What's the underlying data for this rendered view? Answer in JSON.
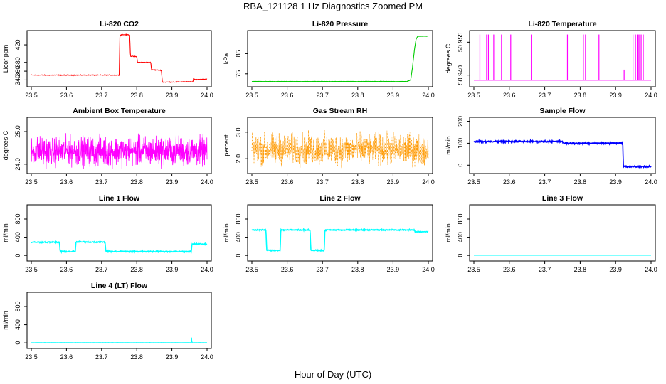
{
  "title": "RBA_121128  1 Hz Diagnostics Zoomed PM",
  "xlabel": "Hour of Day (UTC)",
  "chart_data": [
    {
      "type": "line",
      "title": "Li-820 CO2",
      "ylabel": "Licor ppm",
      "color": "#ff0000",
      "xlim": [
        23.5,
        24.0
      ],
      "ylim": [
        331,
        446
      ],
      "yticks": [
        340,
        360,
        380,
        420
      ],
      "xticks": [
        23.5,
        23.6,
        23.7,
        23.8,
        23.9,
        24.0
      ],
      "noise": 1.2,
      "points": [
        [
          23.5,
          351
        ],
        [
          23.75,
          351
        ],
        [
          23.752,
          441
        ],
        [
          23.755,
          443
        ],
        [
          23.78,
          443
        ],
        [
          23.782,
          394
        ],
        [
          23.8,
          393
        ],
        [
          23.802,
          380
        ],
        [
          23.84,
          380
        ],
        [
          23.842,
          363
        ],
        [
          23.87,
          362
        ],
        [
          23.873,
          335
        ],
        [
          23.96,
          336
        ],
        [
          23.962,
          346
        ],
        [
          23.963,
          341
        ],
        [
          24.0,
          342
        ]
      ]
    },
    {
      "type": "line",
      "title": "Li-820 Pressure",
      "ylabel": "kPa",
      "color": "#00cc00",
      "xlim": [
        23.5,
        24.0
      ],
      "ylim": [
        70,
        95
      ],
      "yticks": [
        75,
        85
      ],
      "xticks": [
        23.5,
        23.6,
        23.7,
        23.8,
        23.9,
        24.0
      ],
      "noise": 0.15,
      "points": [
        [
          23.5,
          71.2
        ],
        [
          23.94,
          71.2
        ],
        [
          23.95,
          72
        ],
        [
          23.955,
          78
        ],
        [
          23.96,
          86
        ],
        [
          23.965,
          92
        ],
        [
          23.97,
          93.6
        ],
        [
          24.0,
          93.6
        ]
      ]
    },
    {
      "type": "spikes",
      "title": "Li-820 Temperature",
      "ylabel": "degrees C",
      "color": "#ff00ff",
      "xlim": [
        23.5,
        24.0
      ],
      "ylim": [
        50.936,
        50.959
      ],
      "yticks": [
        50.94,
        50.955
      ],
      "ytickLabels": [
        "50.940",
        "50.955"
      ],
      "xticks": [
        23.5,
        23.6,
        23.7,
        23.8,
        23.9,
        24.0
      ],
      "baseline": 50.9377,
      "top": 50.9585,
      "spikes": [
        23.517,
        23.536,
        23.541,
        23.556,
        23.578,
        23.604,
        23.662,
        23.764,
        23.809,
        23.815,
        23.853,
        23.949,
        23.956,
        23.961,
        23.963,
        23.966,
        23.972,
        23.978
      ],
      "midSpikes": [
        [
          23.924,
          50.9425
        ]
      ]
    },
    {
      "type": "noise",
      "title": "Ambient Box Temperature",
      "ylabel": "degrees C",
      "color": "#ff00ff",
      "xlim": [
        23.5,
        24.0
      ],
      "ylim": [
        23.8,
        25.35
      ],
      "yticks": [
        24.0,
        25.0
      ],
      "ytickLabels": [
        "24.0",
        "25.0"
      ],
      "xticks": [
        23.5,
        23.6,
        23.7,
        23.8,
        23.9,
        24.0
      ],
      "mean": 24.4,
      "spread": 0.65
    },
    {
      "type": "noise",
      "title": "Gas Stream RH",
      "ylabel": "percent",
      "color": "#ff9900",
      "dotted": true,
      "xlim": [
        23.5,
        24.0
      ],
      "ylim": [
        1.55,
        3.45
      ],
      "yticks": [
        2.0,
        3.0
      ],
      "ytickLabels": [
        "2.0",
        "3.0"
      ],
      "xticks": [
        23.5,
        23.6,
        23.7,
        23.8,
        23.9,
        24.0
      ],
      "mean": 2.35,
      "spread": 0.85
    },
    {
      "type": "line",
      "title": "Sample Flow",
      "ylabel": "ml/min",
      "color": "#0000ff",
      "xlim": [
        23.5,
        24.0
      ],
      "ylim": [
        -25,
        205
      ],
      "yticks": [
        0,
        100,
        200
      ],
      "xticks": [
        23.5,
        23.6,
        23.7,
        23.8,
        23.9,
        24.0
      ],
      "noise": 6,
      "thick": true,
      "points": [
        [
          23.5,
          108
        ],
        [
          23.75,
          108
        ],
        [
          23.752,
          100
        ],
        [
          23.92,
          100
        ],
        [
          23.922,
          -6
        ],
        [
          24.0,
          -6
        ]
      ]
    },
    {
      "type": "line",
      "title": "Line 1 Flow",
      "ylabel": "ml/min",
      "color": "#00ffff",
      "xlim": [
        23.5,
        24.0
      ],
      "ylim": [
        -60,
        1050
      ],
      "yticks": [
        0,
        400,
        800
      ],
      "xticks": [
        23.5,
        23.6,
        23.7,
        23.8,
        23.9,
        24.0
      ],
      "noise": 20,
      "thick": true,
      "points": [
        [
          23.5,
          290
        ],
        [
          23.58,
          290
        ],
        [
          23.582,
          85
        ],
        [
          23.625,
          85
        ],
        [
          23.627,
          295
        ],
        [
          23.71,
          295
        ],
        [
          23.712,
          85
        ],
        [
          23.955,
          85
        ],
        [
          23.957,
          250
        ],
        [
          24.0,
          250
        ]
      ]
    },
    {
      "type": "line",
      "title": "Line 2 Flow",
      "ylabel": "ml/min",
      "color": "#00ffff",
      "xlim": [
        23.5,
        24.0
      ],
      "ylim": [
        -60,
        1050
      ],
      "yticks": [
        0,
        400,
        800
      ],
      "xticks": [
        23.5,
        23.6,
        23.7,
        23.8,
        23.9,
        24.0
      ],
      "noise": 18,
      "thick": true,
      "points": [
        [
          23.5,
          560
        ],
        [
          23.54,
          560
        ],
        [
          23.542,
          110
        ],
        [
          23.58,
          110
        ],
        [
          23.582,
          560
        ],
        [
          23.665,
          560
        ],
        [
          23.667,
          110
        ],
        [
          23.705,
          110
        ],
        [
          23.707,
          560
        ],
        [
          23.96,
          560
        ],
        [
          23.962,
          520
        ],
        [
          24.0,
          520
        ]
      ]
    },
    {
      "type": "line",
      "title": "Line 3 Flow",
      "ylabel": "ml/min",
      "color": "#00ffff",
      "xlim": [
        23.5,
        24.0
      ],
      "ylim": [
        -60,
        1050
      ],
      "yticks": [
        0,
        400,
        800
      ],
      "xticks": [
        23.5,
        23.6,
        23.7,
        23.8,
        23.9,
        24.0
      ],
      "noise": 0,
      "points": [
        [
          23.5,
          2
        ],
        [
          24.0,
          2
        ]
      ]
    },
    {
      "type": "line",
      "title": "Line 4 (LT) Flow",
      "ylabel": "ml/min",
      "color": "#00ffff",
      "xlim": [
        23.5,
        24.0
      ],
      "ylim": [
        -60,
        1050
      ],
      "yticks": [
        0,
        400,
        800
      ],
      "xticks": [
        23.5,
        23.6,
        23.7,
        23.8,
        23.9,
        24.0
      ],
      "noise": 3,
      "points": [
        [
          23.5,
          5
        ],
        [
          23.955,
          5
        ],
        [
          23.956,
          150
        ],
        [
          23.957,
          5
        ],
        [
          24.0,
          5
        ]
      ]
    }
  ]
}
